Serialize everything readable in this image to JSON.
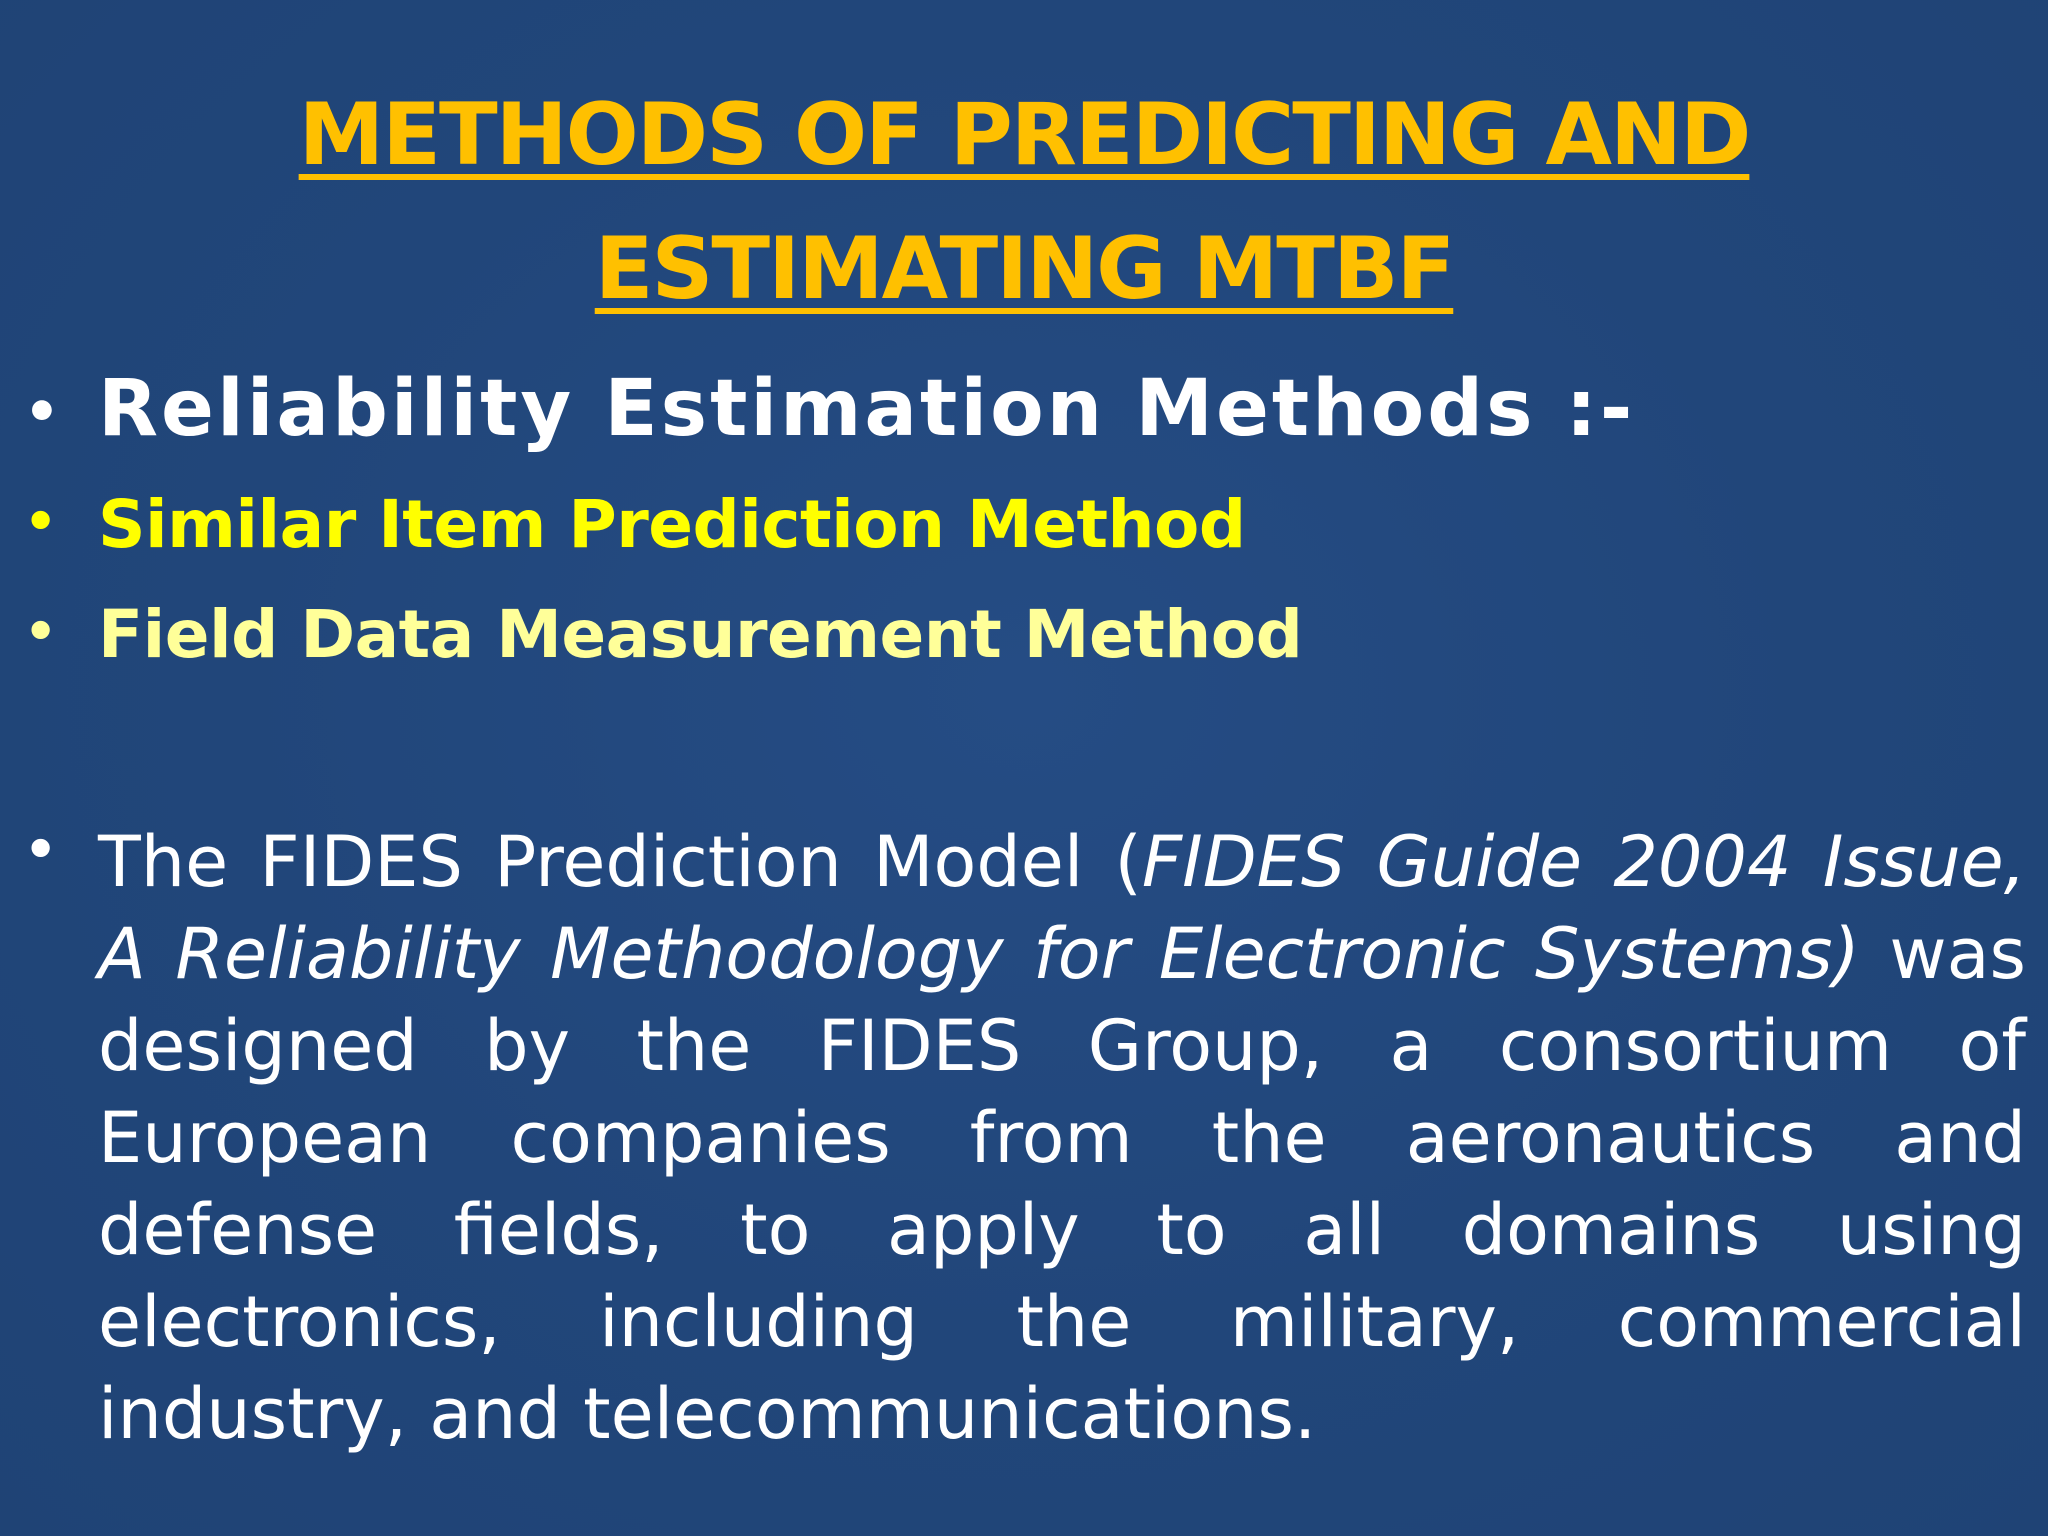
{
  "slide": {
    "title_line1": "METHODS OF PREDICTING AND",
    "title_line2": "ESTIMATING MTBF",
    "bullet_char": "•",
    "bullets": [
      {
        "text": "Reliability Estimation Methods :-",
        "color": "#ffffff"
      },
      {
        "text": "Similar Item Prediction Method",
        "color": "#ffff00"
      },
      {
        "text": "Field Data Measurement Method",
        "color": "#ffff99"
      }
    ],
    "paragraph": {
      "part1": "The FIDES Prediction Model (",
      "part2_italic": "FIDES Guide 2004 Issue, A Reliability Methodology for Electronic Systems)",
      "part3": " was designed by the FIDES Group, a consortium of European companies from the aeronautics and defense fields, to apply to all domains using electronics, including the military, commercial industry, and telecommunications."
    },
    "colors": {
      "background": "#21467a",
      "title": "#ffc000",
      "body": "#ffffff"
    }
  }
}
